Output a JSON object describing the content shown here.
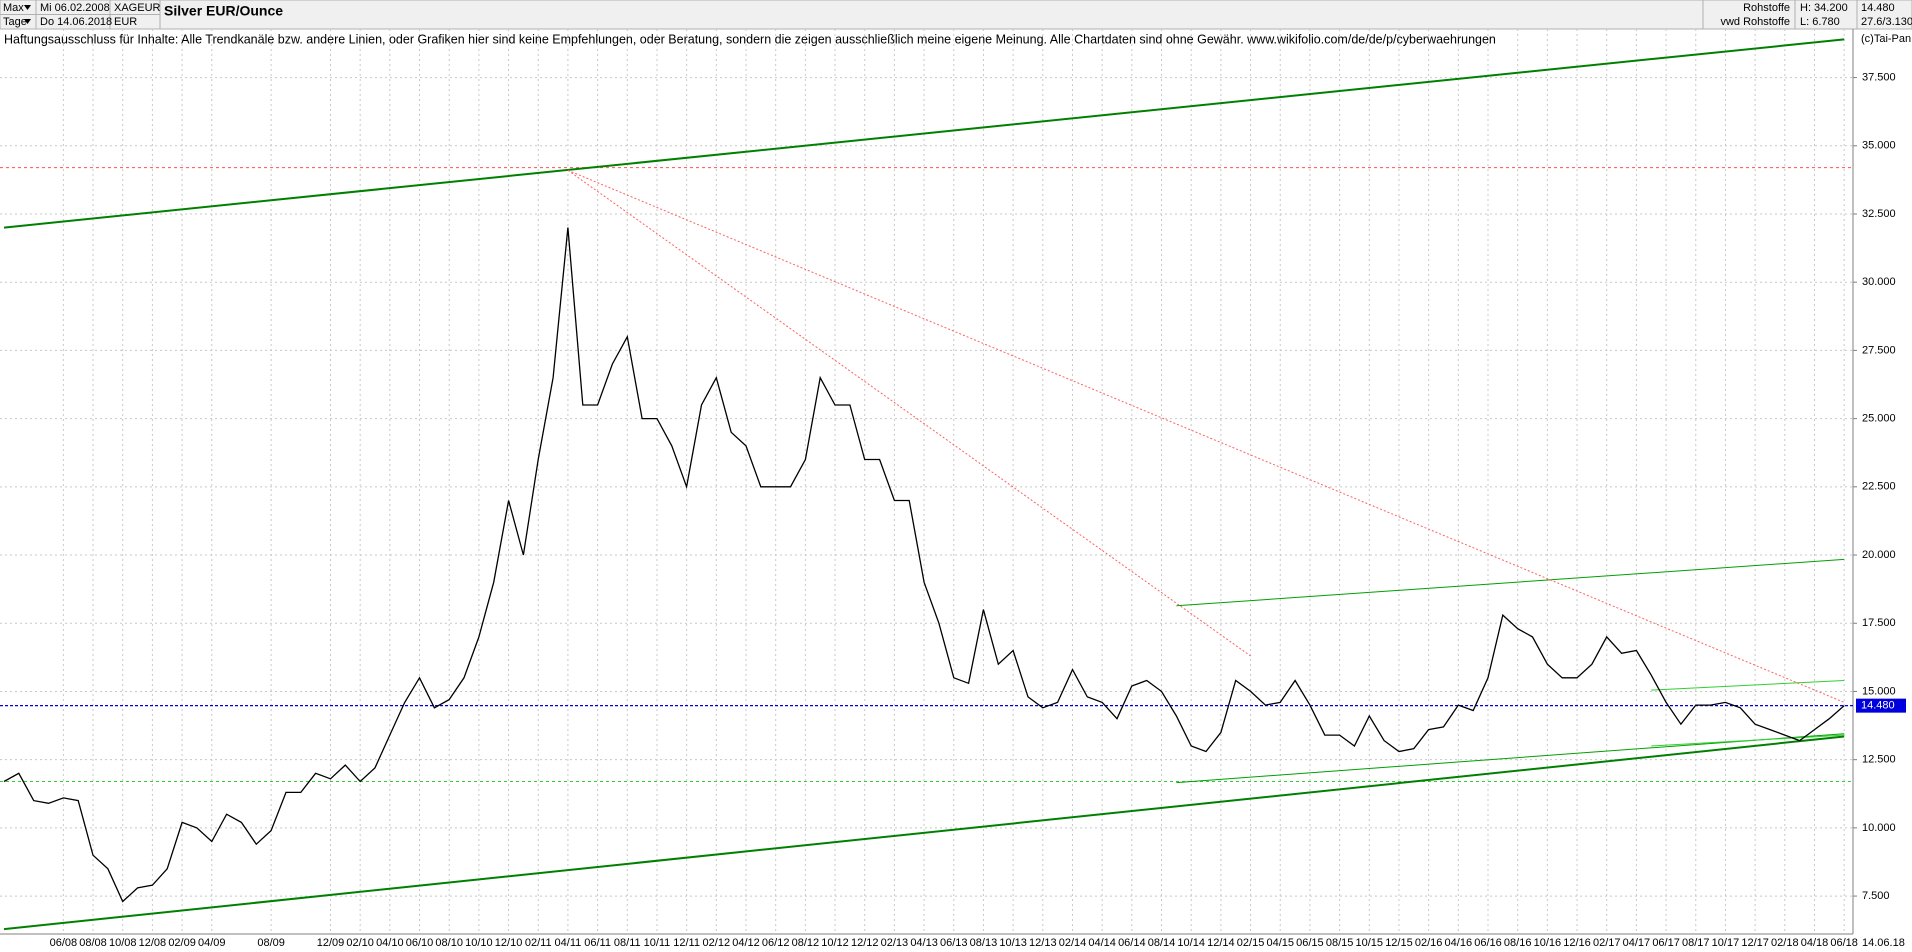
{
  "header": {
    "period": "Max",
    "interval": "Tage",
    "from": "Mi 06.02.2008",
    "to": "Do 14.06.2018",
    "symbol": "XAGEUR",
    "currency": "EUR",
    "title": "Silver EUR/Ounce",
    "market": "Rohstoffe",
    "source": "vwd Rohstoffe",
    "high": "H: 34.200",
    "low": "L: 6.780",
    "last": "14.480",
    "extra": "27.6/3.130",
    "copyright": "(c)Tai-Pan"
  },
  "chart_data": {
    "type": "line",
    "subtitle": "Haftungsausschluss für Inhalte: Alle Trendkanäle bzw. andere Linien, oder Grafiken hier sind keine Empfehlungen, oder Beratung, sondern die zeigen ausschließlich meine eigene Meinung. Alle Chartdaten sind ohne Gewähr.  www.wikifolio.com/de/de/p/cyberwaehrungen",
    "x": [
      "02/08",
      "03/08",
      "04/08",
      "05/08",
      "06/08",
      "07/08",
      "08/08",
      "09/08",
      "10/08",
      "11/08",
      "12/08",
      "01/09",
      "02/09",
      "03/09",
      "04/09",
      "05/09",
      "06/09",
      "07/09",
      "08/09",
      "09/09",
      "10/09",
      "11/09",
      "12/09",
      "01/10",
      "02/10",
      "03/10",
      "04/10",
      "05/10",
      "06/10",
      "07/10",
      "08/10",
      "09/10",
      "10/10",
      "11/10",
      "12/10",
      "01/11",
      "02/11",
      "03/11",
      "04/11",
      "05/11",
      "06/11",
      "07/11",
      "08/11",
      "09/11",
      "10/11",
      "11/11",
      "12/11",
      "01/12",
      "02/12",
      "03/12",
      "04/12",
      "05/12",
      "06/12",
      "07/12",
      "08/12",
      "09/12",
      "10/12",
      "11/12",
      "12/12",
      "01/13",
      "02/13",
      "03/13",
      "04/13",
      "05/13",
      "06/13",
      "07/13",
      "08/13",
      "09/13",
      "10/13",
      "11/13",
      "12/13",
      "01/14",
      "02/14",
      "03/14",
      "04/14",
      "05/14",
      "06/14",
      "07/14",
      "08/14",
      "09/14",
      "10/14",
      "11/14",
      "12/14",
      "01/15",
      "02/15",
      "03/15",
      "04/15",
      "05/15",
      "06/15",
      "07/15",
      "08/15",
      "09/15",
      "10/15",
      "11/15",
      "12/15",
      "01/16",
      "02/16",
      "03/16",
      "04/16",
      "05/16",
      "06/16",
      "07/16",
      "08/16",
      "09/16",
      "10/16",
      "11/16",
      "12/16",
      "01/17",
      "02/17",
      "03/17",
      "04/17",
      "05/17",
      "06/17",
      "07/17",
      "08/17",
      "09/17",
      "10/17",
      "11/17",
      "12/17",
      "01/18",
      "02/18",
      "03/18",
      "04/18",
      "05/18",
      "06/18"
    ],
    "values": [
      11.7,
      12.0,
      11.0,
      10.9,
      11.1,
      11.0,
      9.0,
      8.5,
      7.3,
      7.8,
      7.9,
      8.5,
      10.2,
      10.0,
      9.5,
      10.5,
      10.2,
      9.4,
      9.9,
      11.3,
      11.3,
      12.0,
      11.8,
      12.3,
      11.7,
      12.2,
      13.4,
      14.6,
      15.5,
      14.4,
      14.7,
      15.5,
      17.0,
      19.0,
      22.0,
      20.0,
      23.5,
      26.5,
      32.0,
      25.5,
      25.5,
      27.0,
      28.0,
      25.0,
      25.0,
      24.0,
      22.5,
      25.5,
      26.5,
      24.5,
      24.0,
      22.5,
      22.5,
      22.5,
      23.5,
      26.5,
      25.5,
      25.5,
      23.5,
      23.5,
      22.0,
      22.0,
      19.0,
      17.5,
      15.5,
      15.3,
      18.0,
      16.0,
      16.5,
      14.8,
      14.4,
      14.6,
      15.8,
      14.8,
      14.6,
      14.0,
      15.2,
      15.4,
      15.0,
      14.1,
      13.0,
      12.8,
      13.5,
      15.4,
      15.0,
      14.5,
      14.6,
      15.4,
      14.5,
      13.4,
      13.4,
      13.0,
      14.1,
      13.2,
      12.8,
      12.9,
      13.6,
      13.7,
      14.5,
      14.3,
      15.5,
      17.8,
      17.3,
      17.0,
      16.0,
      15.5,
      15.5,
      16.0,
      17.0,
      16.4,
      16.5,
      15.6,
      14.6,
      13.8,
      14.5,
      14.5,
      14.6,
      14.4,
      13.8,
      13.6,
      13.4,
      13.2,
      13.6,
      14.0,
      14.48
    ],
    "color": "#000000",
    "ylim": [
      6.11,
      39.28
    ],
    "yticks": [
      {
        "value": 7.5,
        "label": "7.500"
      },
      {
        "value": 10,
        "label": "10.000"
      },
      {
        "value": 12.5,
        "label": "12.500"
      },
      {
        "value": 15,
        "label": "15.000"
      },
      {
        "value": 17.5,
        "label": "17.500"
      },
      {
        "value": 20,
        "label": "20.000"
      },
      {
        "value": 22.5,
        "label": "22.500"
      },
      {
        "value": 25,
        "label": "25.000"
      },
      {
        "value": 27.5,
        "label": "27.500"
      },
      {
        "value": 30,
        "label": "30.000"
      },
      {
        "value": 32.5,
        "label": "32.500"
      },
      {
        "value": 35,
        "label": "35.000"
      },
      {
        "value": 37.5,
        "label": "37.500"
      }
    ],
    "xticks": [
      "06/08",
      "08/08",
      "10/08",
      "12/08",
      "02/09",
      "04/09",
      "08/09",
      "12/09",
      "02/10",
      "04/10",
      "06/10",
      "08/10",
      "10/10",
      "12/10",
      "02/11",
      "04/11",
      "06/11",
      "08/11",
      "10/11",
      "12/11",
      "02/12",
      "04/12",
      "06/12",
      "08/12",
      "10/12",
      "12/12",
      "02/13",
      "04/13",
      "06/13",
      "08/13",
      "10/13",
      "12/13",
      "02/14",
      "04/14",
      "06/14",
      "08/14",
      "10/14",
      "12/14",
      "02/15",
      "04/15",
      "06/15",
      "08/15",
      "10/15",
      "12/15",
      "02/16",
      "04/16",
      "06/16",
      "08/16",
      "10/16",
      "12/16",
      "02/17",
      "04/17",
      "06/17",
      "08/17",
      "10/17",
      "12/17",
      "02/18",
      "04/18",
      "06/18"
    ],
    "grid": true,
    "last_price": {
      "value": 14.48,
      "label": "14.480",
      "color": "#0000dd"
    },
    "end_date": "14.06.18",
    "hlines": [
      {
        "value": 34.2,
        "color": "#ff5050"
      },
      {
        "value": 11.7,
        "color": "#30d030"
      }
    ],
    "trendlines": [
      {
        "x": [
          "02/08",
          "06/18"
        ],
        "y": [
          32.0,
          38.9
        ],
        "color": "#008000",
        "width": 2
      },
      {
        "x": [
          "02/08",
          "06/18"
        ],
        "y": [
          6.29,
          13.35
        ],
        "color": "#008000",
        "width": 2
      },
      {
        "x": [
          "09/14",
          "06/18"
        ],
        "y": [
          18.14,
          19.84
        ],
        "color": "#00a000",
        "width": 1
      },
      {
        "x": [
          "09/14",
          "06/18"
        ],
        "y": [
          11.66,
          13.45
        ],
        "color": "#00a000",
        "width": 1
      },
      {
        "x": [
          "05/17",
          "06/18"
        ],
        "y": [
          15.05,
          15.4
        ],
        "color": "#30d030",
        "width": 1
      },
      {
        "x": [
          "05/17",
          "06/18"
        ],
        "y": [
          13.0,
          13.4
        ],
        "color": "#30d030",
        "width": 1
      },
      {
        "x": [
          "04/11",
          "06/18"
        ],
        "y": [
          34.1,
          14.6
        ],
        "color": "#ff6060",
        "width": 1,
        "dashed": true
      },
      {
        "x": [
          "04/11",
          "02/15"
        ],
        "y": [
          34.1,
          16.3
        ],
        "color": "#ff6060",
        "width": 1,
        "dashed": true
      }
    ]
  }
}
